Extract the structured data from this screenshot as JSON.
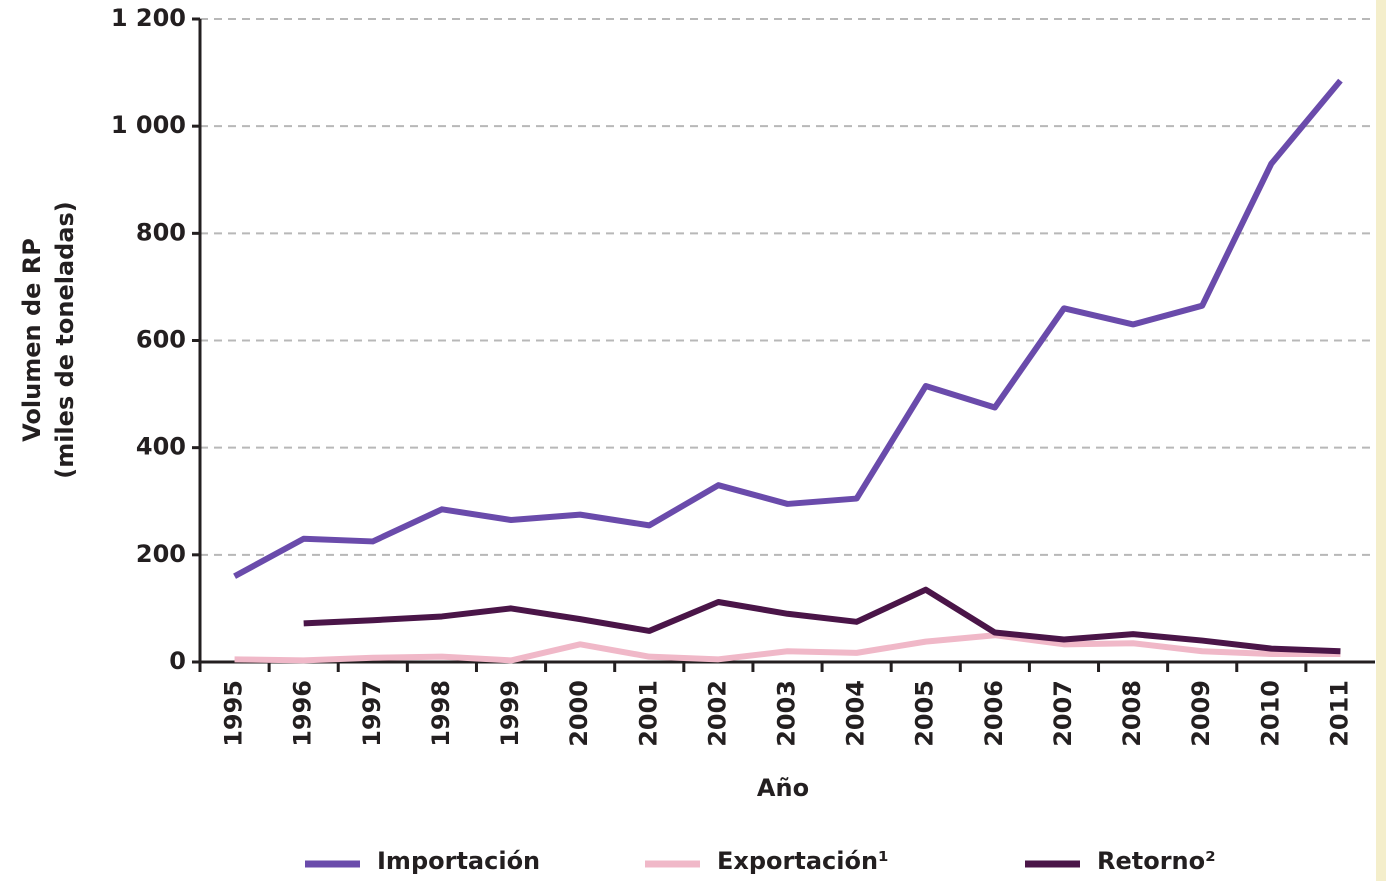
{
  "chart_data": {
    "type": "line",
    "ylabel": [
      "Volumen de RP",
      "(miles de toneladas)"
    ],
    "xlabel": "Año",
    "categories": [
      "1995",
      "1996",
      "1997",
      "1998",
      "1999",
      "2000",
      "2001",
      "2002",
      "2003",
      "2004",
      "2005",
      "2006",
      "2007",
      "2008",
      "2009",
      "2010",
      "2011"
    ],
    "series": [
      {
        "name": "Importación",
        "color": "#6a4bab",
        "values": [
          160,
          230,
          225,
          285,
          265,
          275,
          255,
          330,
          295,
          305,
          515,
          475,
          660,
          630,
          665,
          930,
          1085
        ]
      },
      {
        "name": "Exportación¹",
        "color": "#f0b8c8",
        "values": [
          5,
          3,
          8,
          10,
          3,
          33,
          10,
          5,
          20,
          17,
          38,
          50,
          33,
          35,
          20,
          15,
          15
        ]
      },
      {
        "name": "Retorno²",
        "color": "#4a1548",
        "values": [
          null,
          72,
          78,
          85,
          100,
          80,
          58,
          112,
          90,
          75,
          135,
          55,
          42,
          52,
          40,
          25,
          20
        ]
      }
    ],
    "ylim": [
      0,
      1200
    ],
    "yticks": [
      0,
      200,
      400,
      600,
      800,
      {
        "value": 1000,
        "label": "1 000"
      },
      {
        "value": 1200,
        "label": "1 200"
      }
    ],
    "grid": true
  }
}
